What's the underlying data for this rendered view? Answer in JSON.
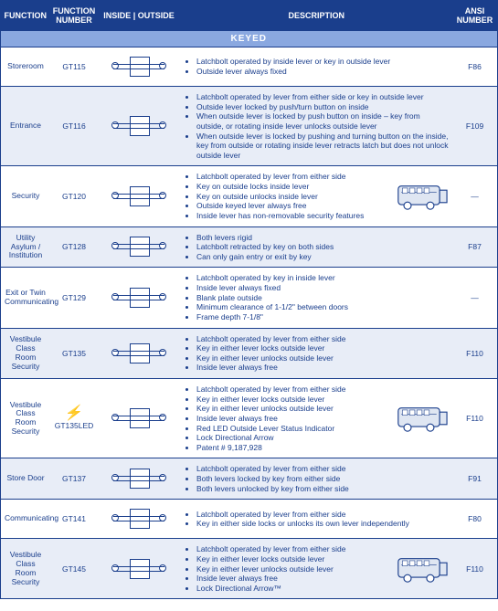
{
  "headers": {
    "function": "FUNCTION",
    "functionNumber": "FUNCTION NUMBER",
    "insideOutside": "INSIDE | OUTSIDE",
    "description": "DESCRIPTION",
    "ansiNumber": "ANSI NUMBER"
  },
  "sectionLabel": "KEYED",
  "colors": {
    "headerBg": "#1a3e8c",
    "headerText": "#ffffff",
    "sectionBg": "#8aa8e0",
    "altRowBg": "#e8edf7",
    "text": "#1a3e8c"
  },
  "rows": [
    {
      "function": "Storeroom",
      "number": "GT115",
      "hasBus": false,
      "hasBolt": false,
      "ansi": "F86",
      "desc": [
        "Latchbolt operated by inside lever or key in outside lever",
        "Outside lever always fixed"
      ]
    },
    {
      "function": "Entrance",
      "number": "GT116",
      "hasBus": false,
      "hasBolt": false,
      "ansi": "F109",
      "desc": [
        "Latchbolt operated by lever from either side or key in outside lever",
        "Outside lever locked by push/turn button on inside",
        "When outside lever is locked by push button on inside – key from outside, or rotating inside lever unlocks outside lever",
        "When outside lever is locked by pushing and turning button on the inside, key from outside or rotating inside lever retracts latch but does not unlock outside lever"
      ]
    },
    {
      "function": "Security",
      "number": "GT120",
      "hasBus": true,
      "hasBolt": false,
      "ansi": "—",
      "desc": [
        "Latchbolt operated by lever from either side",
        "Key on outside locks inside lever",
        "Key on outside unlocks inside lever",
        "Outside keyed lever always free",
        "Inside lever has non-removable security features"
      ]
    },
    {
      "function": "Utility Asylum / Institution",
      "number": "GT128",
      "hasBus": false,
      "hasBolt": false,
      "ansi": "F87",
      "desc": [
        "Both levers rigid",
        "Latchbolt retracted by key on both sides",
        "Can only gain entry or exit by key"
      ]
    },
    {
      "function": "Exit or Twin Communicating",
      "number": "GT129",
      "hasBus": false,
      "hasBolt": false,
      "ansi": "—",
      "desc": [
        "Latchbolt operated by key in inside lever",
        "Inside lever always fixed",
        "Blank plate outside",
        "Minimum clearance of 1-1/2\" between doors",
        "Frame depth 7-1/8\""
      ]
    },
    {
      "function": "Vestibule Class Room Security",
      "number": "GT135",
      "hasBus": false,
      "hasBolt": false,
      "ansi": "F110",
      "desc": [
        "Latchbolt operated by lever from either side",
        "Key in either lever locks outside lever",
        "Key in either lever unlocks outside lever",
        "Inside lever always free"
      ]
    },
    {
      "function": "Vestibule Class Room Security",
      "number": "GT135LED",
      "hasBus": true,
      "hasBolt": true,
      "ansi": "F110",
      "desc": [
        "Latchbolt operated by lever from either side",
        "Key in either lever locks outside lever",
        "Key in either lever unlocks outside lever",
        "Inside lever always free",
        "Red LED Outside Lever Status Indicator",
        "Lock Directional Arrow",
        "Patent # 9,187,928"
      ]
    },
    {
      "function": "Store Door",
      "number": "GT137",
      "hasBus": false,
      "hasBolt": false,
      "ansi": "F91",
      "desc": [
        "Latchbolt operated by lever from either side",
        "Both levers locked by key from either side",
        "Both levers unlocked by key from either side"
      ]
    },
    {
      "function": "Communicating",
      "number": "GT141",
      "hasBus": false,
      "hasBolt": false,
      "ansi": "F80",
      "desc": [
        "Latchbolt operated by lever from either side",
        "Key in either side locks or unlocks its own lever independently"
      ]
    },
    {
      "function": "Vestibule Class Room Security",
      "number": "GT145",
      "hasBus": true,
      "hasBolt": false,
      "ansi": "F110",
      "desc": [
        "Latchbolt operated by lever from either side",
        "Key in either lever locks outside lever",
        "Key in either lever unlocks outside lever",
        "Inside lever always free",
        "Lock Directional Arrow™"
      ]
    }
  ]
}
